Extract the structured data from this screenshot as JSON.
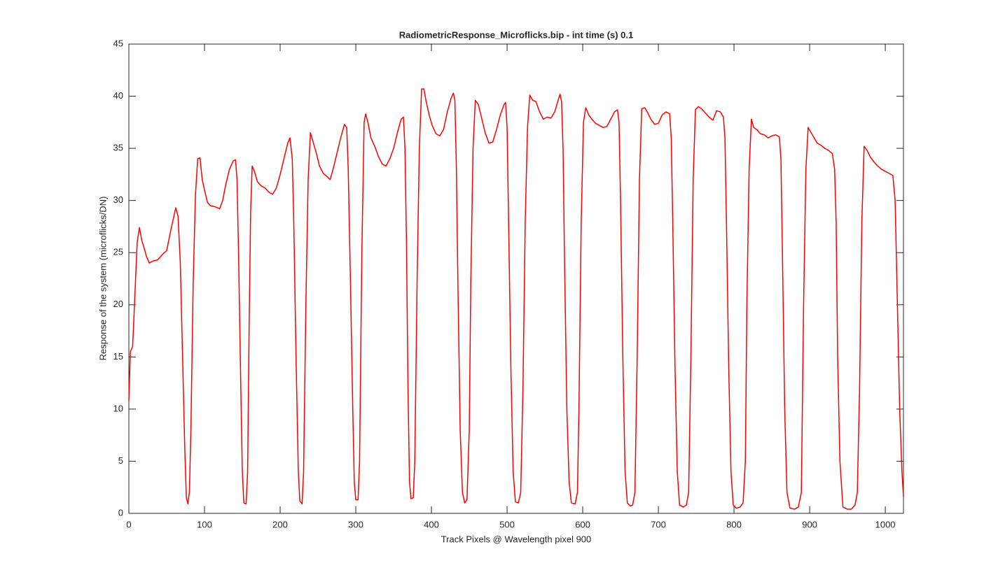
{
  "chart_data": {
    "type": "line",
    "title": "RadiometricResponse_Microflicks.bip - int time (s) 0.1",
    "x_label": "Track Pixels @ Wavelength pixel 900",
    "y_label": "Response of the system (microflicks/DN)",
    "xlim": [
      0,
      1024
    ],
    "ylim": [
      0,
      45
    ],
    "xticks": [
      0,
      100,
      200,
      300,
      400,
      500,
      600,
      700,
      800,
      900,
      1000
    ],
    "yticks": [
      0,
      5,
      10,
      15,
      20,
      25,
      30,
      35,
      40,
      45
    ],
    "grid": false,
    "x": [
      0,
      2,
      5,
      8,
      11,
      14,
      17,
      20,
      23,
      27,
      32,
      38,
      44,
      50,
      55,
      58,
      62,
      65,
      68,
      71,
      74,
      76,
      78,
      80,
      82,
      85,
      88,
      91,
      94,
      97,
      100,
      104,
      108,
      114,
      120,
      124,
      128,
      133,
      138,
      141,
      143,
      145,
      148,
      150,
      152,
      155,
      157,
      159,
      161,
      163,
      166,
      170,
      175,
      180,
      185,
      190,
      195,
      200,
      205,
      210,
      213,
      216,
      218,
      221,
      224,
      226,
      229,
      231,
      234,
      237,
      240,
      244,
      248,
      252,
      257,
      262,
      266,
      270,
      275,
      280,
      285,
      288,
      290,
      293,
      296,
      298,
      300,
      303,
      305,
      308,
      311,
      313,
      316,
      320,
      325,
      330,
      335,
      340,
      345,
      350,
      355,
      360,
      363,
      365,
      367,
      369,
      371,
      373,
      376,
      378,
      381,
      384,
      387,
      390,
      393,
      397,
      401,
      406,
      411,
      416,
      421,
      426,
      429,
      431,
      433,
      435,
      438,
      441,
      444,
      447,
      450,
      452,
      455,
      458,
      462,
      466,
      471,
      476,
      481,
      486,
      491,
      496,
      498,
      500,
      502,
      505,
      508,
      511,
      515,
      518,
      521,
      524,
      527,
      530,
      534,
      538,
      543,
      548,
      553,
      558,
      563,
      567,
      570,
      572,
      574,
      576,
      579,
      582,
      585,
      590,
      593,
      595,
      598,
      601,
      604,
      608,
      612,
      617,
      622,
      627,
      632,
      637,
      642,
      646,
      648,
      650,
      653,
      656,
      659,
      663,
      666,
      669,
      672,
      675,
      678,
      682,
      686,
      690,
      695,
      700,
      705,
      710,
      715,
      717,
      719,
      722,
      725,
      728,
      733,
      737,
      740,
      743,
      746,
      749,
      753,
      757,
      762,
      767,
      772,
      777,
      782,
      786,
      788,
      790,
      793,
      796,
      799,
      803,
      808,
      812,
      815,
      817,
      820,
      823,
      826,
      830,
      835,
      840,
      845,
      850,
      855,
      860,
      862,
      864,
      867,
      870,
      874,
      880,
      885,
      889,
      892,
      895,
      898,
      902,
      906,
      910,
      915,
      920,
      925,
      930,
      933,
      935,
      937,
      940,
      944,
      950,
      955,
      960,
      963,
      966,
      969,
      972,
      976,
      980,
      985,
      990,
      995,
      1000,
      1005,
      1010,
      1013,
      1016,
      1019,
      1022,
      1024
    ],
    "series": [
      {
        "color": "#ff0000",
        "values": [
          10.8,
          15.5,
          16,
          21,
          26,
          27.4,
          26.2,
          25.5,
          24.7,
          24,
          24.2,
          24.3,
          24.8,
          25.2,
          27,
          28,
          29.3,
          28.5,
          24,
          15,
          6,
          1.5,
          0.9,
          2,
          8,
          22,
          30.5,
          34,
          34.1,
          32,
          31,
          29.8,
          29.5,
          29.4,
          29.2,
          30,
          31.5,
          33,
          33.8,
          33.9,
          32,
          25,
          12,
          4,
          1,
          0.9,
          4,
          18,
          29,
          33.3,
          32.8,
          31.8,
          31.4,
          31.2,
          30.8,
          30.6,
          31.2,
          32.5,
          34,
          35.5,
          36,
          34,
          28,
          15,
          4,
          1.2,
          0.9,
          4,
          20,
          32,
          36.5,
          35.5,
          34.5,
          33.3,
          32.6,
          32.3,
          32,
          33,
          34.5,
          36,
          37.3,
          37,
          33,
          22,
          10,
          3,
          1.3,
          1.3,
          5,
          25,
          37.5,
          38.3,
          37.5,
          36,
          35.2,
          34.2,
          33.5,
          33.3,
          34,
          35,
          36.5,
          37.8,
          38,
          35,
          26,
          12,
          3,
          1.4,
          1.5,
          5,
          22,
          35,
          40.7,
          40.7,
          39.5,
          38.2,
          37.2,
          36.4,
          36.2,
          36.8,
          38.5,
          39.8,
          40.3,
          39.6,
          33,
          22,
          8,
          2,
          1,
          1.3,
          8,
          22,
          35,
          39.6,
          39.2,
          38,
          36.5,
          35.5,
          35.6,
          36.8,
          38.2,
          39.2,
          39.4,
          37,
          28,
          14,
          4,
          1.1,
          1,
          2,
          12,
          28,
          37,
          40.1,
          39.6,
          39.5,
          38.5,
          37.8,
          38,
          37.9,
          38.5,
          39.5,
          40.2,
          39.5,
          35,
          24,
          10,
          3,
          1,
          0.9,
          2,
          10,
          28,
          37.5,
          38.9,
          38.2,
          37.8,
          37.4,
          37.2,
          37,
          37.1,
          37.8,
          38.5,
          38.7,
          37.5,
          30,
          15,
          4,
          1,
          0.7,
          0.8,
          2,
          15,
          32,
          38.8,
          38.9,
          38.4,
          37.8,
          37.3,
          37.4,
          38.2,
          38.5,
          38.3,
          36,
          28,
          14,
          4,
          0.8,
          0.6,
          0.8,
          2,
          15,
          32,
          38.7,
          39,
          38.8,
          38.4,
          38,
          37.7,
          38.6,
          38.5,
          38,
          36,
          28,
          14,
          4,
          0.8,
          0.5,
          0.6,
          1,
          5,
          20,
          33,
          37.8,
          37,
          36.8,
          36.4,
          36.3,
          36,
          36.2,
          36.3,
          36.1,
          34,
          25,
          10,
          2,
          0.5,
          0.4,
          0.6,
          2,
          20,
          33,
          37,
          36.5,
          36,
          35.5,
          35.3,
          35,
          34.8,
          34.5,
          33,
          28,
          15,
          5,
          0.6,
          0.4,
          0.4,
          0.8,
          2,
          12,
          28,
          35.2,
          34.8,
          34.2,
          33.7,
          33.3,
          33,
          32.8,
          32.6,
          32.4,
          30,
          20,
          10,
          4,
          1.6
        ]
      }
    ]
  }
}
